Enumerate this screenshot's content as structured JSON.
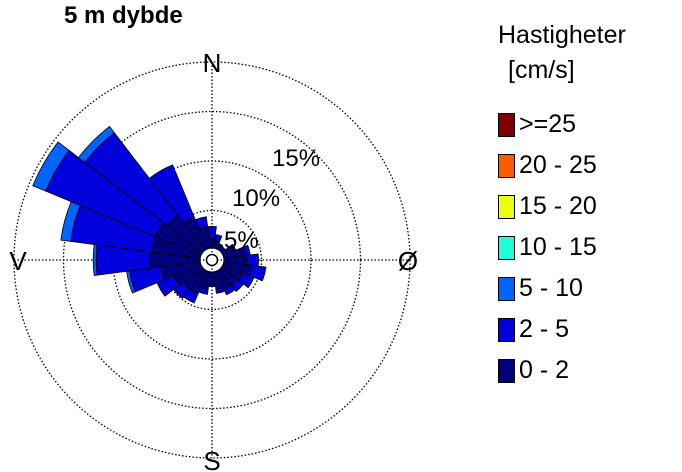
{
  "chart_data": {
    "type": "windrose",
    "title": "5 m dybde",
    "directions": {
      "north": "N",
      "east": "Ø",
      "south": "S",
      "west": "V"
    },
    "ring_labels": [
      "5%",
      "10%",
      "15%"
    ],
    "ring_values": [
      5,
      10,
      15,
      20
    ],
    "rmax": 20,
    "sector_degrees": 15,
    "legend_title": "Hastigheter",
    "legend_unit": "[cm/s]",
    "bins": [
      {
        "label": ">=25",
        "color": "#7f0000"
      },
      {
        "label": "20 - 25",
        "color": "#ff5a00"
      },
      {
        "label": "15 - 20",
        "color": "#ebff0f"
      },
      {
        "label": "10 - 15",
        "color": "#1dffd5"
      },
      {
        "label": "5 - 10",
        "color": "#0064ff"
      },
      {
        "label": "2 - 5",
        "color": "#0000dc"
      },
      {
        "label": "0 - 2",
        "color": "#00007f"
      }
    ],
    "sectors": [
      {
        "direction_deg": 0,
        "freq": [
          1.0,
          1.2,
          0.0
        ]
      },
      {
        "direction_deg": 15,
        "freq": [
          0.8,
          0.6,
          0.0
        ]
      },
      {
        "direction_deg": 30,
        "freq": [
          0.6,
          0.0,
          0.0
        ]
      },
      {
        "direction_deg": 45,
        "freq": [
          0.5,
          0.0,
          0.0
        ]
      },
      {
        "direction_deg": 60,
        "freq": [
          1.4,
          0.0,
          0.0
        ]
      },
      {
        "direction_deg": 75,
        "freq": [
          2.2,
          0.5,
          0.0
        ]
      },
      {
        "direction_deg": 90,
        "freq": [
          2.3,
          1.2,
          0.0
        ]
      },
      {
        "direction_deg": 105,
        "freq": [
          2.8,
          1.5,
          0.0
        ]
      },
      {
        "direction_deg": 120,
        "freq": [
          2.2,
          1.2,
          0.0
        ]
      },
      {
        "direction_deg": 135,
        "freq": [
          2.0,
          0.8,
          0.0
        ]
      },
      {
        "direction_deg": 150,
        "freq": [
          2.0,
          0.6,
          0.0
        ]
      },
      {
        "direction_deg": 165,
        "freq": [
          1.8,
          0.4,
          0.0
        ]
      },
      {
        "direction_deg": 180,
        "freq": [
          1.5,
          0.0,
          0.0
        ]
      },
      {
        "direction_deg": 195,
        "freq": [
          1.8,
          0.5,
          0.0
        ]
      },
      {
        "direction_deg": 210,
        "freq": [
          2.5,
          1.0,
          0.0
        ]
      },
      {
        "direction_deg": 225,
        "freq": [
          2.5,
          1.2,
          0.0
        ]
      },
      {
        "direction_deg": 240,
        "freq": [
          3.0,
          1.8,
          0.0
        ]
      },
      {
        "direction_deg": 255,
        "freq": [
          4.0,
          3.2,
          0.3
        ]
      },
      {
        "direction_deg": 270,
        "freq": [
          5.0,
          5.5,
          0.3
        ]
      },
      {
        "direction_deg": 285,
        "freq": [
          5.0,
          8.2,
          1.0
        ]
      },
      {
        "direction_deg": 300,
        "freq": [
          5.0,
          12.0,
          1.4
        ]
      },
      {
        "direction_deg": 315,
        "freq": [
          4.5,
          10.5,
          0.8
        ]
      },
      {
        "direction_deg": 330,
        "freq": [
          3.5,
          5.7,
          0.0
        ]
      },
      {
        "direction_deg": 345,
        "freq": [
          2.2,
          1.0,
          0.0
        ]
      }
    ]
  }
}
